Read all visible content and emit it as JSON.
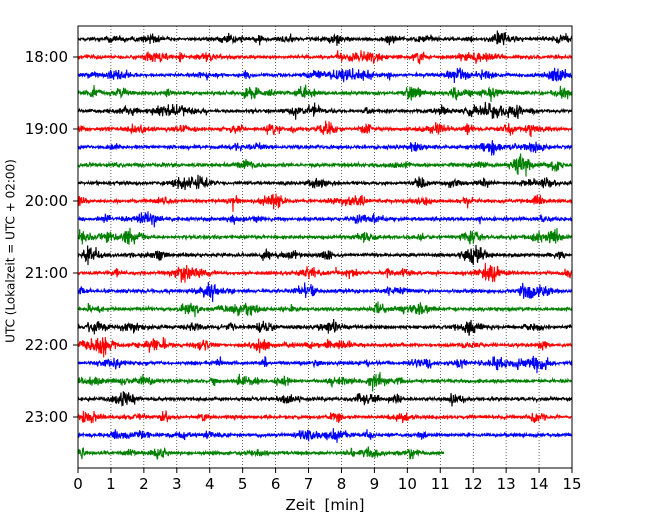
{
  "chart_data": {
    "type": "line",
    "chart_kind": "seismic helicorder (drum plot)",
    "xlabel": "Zeit  [min]",
    "ylabel": "UTC (Lokalzeit = UTC + 02:00)",
    "xlim": [
      0,
      15
    ],
    "x_ticks": [
      "0",
      "1",
      "2",
      "3",
      "4",
      "5",
      "6",
      "7",
      "8",
      "9",
      "10",
      "11",
      "12",
      "13",
      "14",
      "15"
    ],
    "y_tick_labels": [
      "18:00",
      "19:00",
      "20:00",
      "21:00",
      "22:00",
      "23:00"
    ],
    "grid": "vertical dotted lines at each minute",
    "trace_interval_minutes": 15,
    "trace_colors": [
      "#000000",
      "#ff0000",
      "#0000ff",
      "#008000"
    ],
    "traces": [
      {
        "start": "17:45",
        "end_min": 15
      },
      {
        "start": "18:00",
        "end_min": 15
      },
      {
        "start": "18:15",
        "end_min": 15
      },
      {
        "start": "18:30",
        "end_min": 15
      },
      {
        "start": "18:45",
        "end_min": 15
      },
      {
        "start": "19:00",
        "end_min": 15
      },
      {
        "start": "19:15",
        "end_min": 15
      },
      {
        "start": "19:30",
        "end_min": 15
      },
      {
        "start": "19:45",
        "end_min": 15
      },
      {
        "start": "20:00",
        "end_min": 15
      },
      {
        "start": "20:15",
        "end_min": 15
      },
      {
        "start": "20:30",
        "end_min": 15
      },
      {
        "start": "20:45",
        "end_min": 15
      },
      {
        "start": "21:00",
        "end_min": 15
      },
      {
        "start": "21:15",
        "end_min": 15
      },
      {
        "start": "21:30",
        "end_min": 15
      },
      {
        "start": "21:45",
        "end_min": 15
      },
      {
        "start": "22:00",
        "end_min": 15
      },
      {
        "start": "22:15",
        "end_min": 15
      },
      {
        "start": "22:30",
        "end_min": 15
      },
      {
        "start": "22:45",
        "end_min": 15
      },
      {
        "start": "23:00",
        "end_min": 15
      },
      {
        "start": "23:15",
        "end_min": 15
      },
      {
        "start": "23:30",
        "end_min": 11.1
      }
    ]
  }
}
